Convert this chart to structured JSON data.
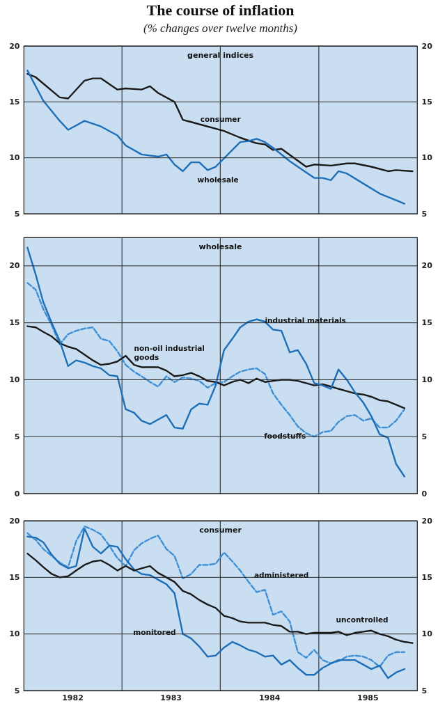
{
  "chart_data": [
    {
      "type": "line",
      "title": "The course of inflation",
      "subtitle": "(% changes over twelve months)",
      "xlim": [
        "1982-01-01",
        "1986-01-01"
      ],
      "ylim": [
        5,
        20
      ],
      "yticks": [
        5,
        10,
        15,
        20
      ],
      "y2lim": [
        5,
        20
      ],
      "y2ticks": [
        5,
        10,
        15,
        20
      ],
      "grid": "y",
      "tick_labels": "y",
      "ref_lines": [
        {
          "axis": "x",
          "value": "1983-01-01",
          "color": "#1a1a1a"
        },
        {
          "axis": "x",
          "value": "1984-01-01",
          "color": "#1a1a1a"
        },
        {
          "axis": "x",
          "value": "1985-01-01",
          "color": "#1a1a1a"
        }
      ],
      "series": [
        {
          "color": "#1a1a1a",
          "x": [
            "1982-01-15",
            "1982-02-15",
            "1982-05-15",
            "1982-06-15",
            "1982-08-15",
            "1982-09-15",
            "1982-10-15",
            "1982-12-15",
            "1983-01-15",
            "1983-03-15",
            "1983-04-15",
            "1983-05-15",
            "1983-07-15",
            "1983-08-15",
            "1983-09-15",
            "1984-01-15",
            "1984-03-15",
            "1984-05-15",
            "1984-06-15",
            "1984-07-15",
            "1984-08-15",
            "1984-11-15",
            "1984-12-15",
            "1985-02-15",
            "1985-04-15",
            "1985-05-15",
            "1985-07-15",
            "1985-09-15",
            "1985-10-15",
            "1985-12-15"
          ],
          "values": [
            17.5,
            17.2,
            15.4,
            15.3,
            16.9,
            17.1,
            17.1,
            16.1,
            16.2,
            16.1,
            16.4,
            15.8,
            15.0,
            13.4,
            13.2,
            12.4,
            11.8,
            11.3,
            11.2,
            10.7,
            10.8,
            9.2,
            9.4,
            9.3,
            9.5,
            9.5,
            9.2,
            8.8,
            8.9,
            8.8
          ]
        },
        {
          "color": "#1f6fb8",
          "x": [
            "1982-01-15",
            "1982-03-15",
            "1982-05-15",
            "1982-06-15",
            "1982-08-15",
            "1982-10-15",
            "1982-12-15",
            "1983-01-15",
            "1983-03-15",
            "1983-05-15",
            "1983-06-15",
            "1983-07-15",
            "1983-08-15",
            "1983-09-15",
            "1983-10-15",
            "1983-11-15",
            "1983-12-15",
            "1984-02-15",
            "1984-03-15",
            "1984-04-15",
            "1984-05-15",
            "1984-06-15",
            "1984-07-15",
            "1984-09-15",
            "1984-10-15",
            "1984-12-15",
            "1985-01-15",
            "1985-02-15",
            "1985-03-15",
            "1985-04-15",
            "1985-06-15",
            "1985-08-15",
            "1985-10-15",
            "1985-11-15"
          ],
          "values": [
            17.8,
            15.1,
            13.3,
            12.5,
            13.3,
            12.8,
            12.0,
            11.1,
            10.3,
            10.1,
            10.3,
            9.4,
            8.8,
            9.6,
            9.6,
            8.9,
            9.2,
            10.7,
            11.4,
            11.5,
            11.7,
            11.4,
            10.9,
            9.7,
            9.2,
            8.2,
            8.2,
            8.0,
            8.8,
            8.6,
            7.7,
            6.8,
            6.2,
            5.9
          ]
        }
      ],
      "annotations": [
        "general indices",
        {
          "text": "consumer",
          "x": "1984-01-15",
          "y": 12.4
        },
        {
          "text": "wholesale",
          "x": "1983-11-15",
          "y": 8.9
        }
      ]
    },
    {
      "type": "line",
      "xlim": [
        "1982-01-01",
        "1986-01-01"
      ],
      "ylim": [
        0,
        22.5
      ],
      "yticks": [
        0,
        5,
        10,
        15,
        20
      ],
      "y2lim": [
        0,
        22.5
      ],
      "y2ticks": [
        0,
        5,
        10,
        15,
        20
      ],
      "grid": "y",
      "tick_labels": "y",
      "ref_lines": [
        {
          "axis": "x",
          "value": "1983-01-01",
          "color": "#1a1a1a"
        },
        {
          "axis": "x",
          "value": "1984-01-01",
          "color": "#1a1a1a"
        },
        {
          "axis": "x",
          "value": "1985-01-01",
          "color": "#1a1a1a"
        }
      ],
      "x": [
        "1982-01-15",
        "1982-02-15",
        "1982-03-15",
        "1982-04-15",
        "1982-05-15",
        "1982-06-15",
        "1982-07-15",
        "1982-08-15",
        "1982-09-15",
        "1982-10-15",
        "1982-11-15",
        "1982-12-15",
        "1983-01-15",
        "1983-02-15",
        "1983-03-15",
        "1983-04-15",
        "1983-05-15",
        "1983-06-15",
        "1983-07-15",
        "1983-08-15",
        "1983-09-15",
        "1983-10-15",
        "1983-11-15",
        "1983-12-15",
        "1984-01-15",
        "1984-02-15",
        "1984-03-15",
        "1984-04-15",
        "1984-05-15",
        "1984-06-15",
        "1984-07-15",
        "1984-08-15",
        "1984-09-15",
        "1984-10-15",
        "1984-11-15",
        "1984-12-15",
        "1985-01-15",
        "1985-02-15",
        "1985-03-15",
        "1985-04-15",
        "1985-05-15",
        "1985-06-15",
        "1985-07-15",
        "1985-08-15",
        "1985-09-15",
        "1985-10-15",
        "1985-11-15"
      ],
      "series": [
        {
          "color": "#3f8fd6",
          "line_style": "dashed",
          "values": [
            18.5,
            17.9,
            16.2,
            14.8,
            13.1,
            14.0,
            14.3,
            14.5,
            14.6,
            13.6,
            13.4,
            12.5,
            11.3,
            10.7,
            10.3,
            9.8,
            9.4,
            10.3,
            9.8,
            10.2,
            10.1,
            9.9,
            9.3,
            9.7,
            9.8,
            10.3,
            10.7,
            10.9,
            11.0,
            10.5,
            8.8,
            7.8,
            6.9,
            5.9,
            5.3,
            5.0,
            5.4,
            5.5,
            6.3,
            6.8,
            6.9,
            6.4,
            6.6,
            5.8,
            5.8,
            6.4,
            7.4
          ]
        },
        {
          "color": "#1a1a1a",
          "values": [
            14.7,
            14.6,
            14.2,
            13.8,
            13.2,
            12.9,
            12.7,
            12.2,
            11.7,
            11.3,
            11.4,
            11.6,
            12.1,
            11.3,
            11.1,
            11.1,
            11.1,
            10.8,
            10.3,
            10.4,
            10.6,
            10.3,
            9.9,
            9.8,
            9.5,
            9.8,
            10.0,
            9.7,
            10.1,
            9.8,
            9.9,
            10.0,
            10.0,
            9.9,
            9.7,
            9.5,
            9.6,
            9.4,
            9.2,
            9.0,
            8.8,
            8.7,
            8.5,
            8.2,
            8.1,
            7.8,
            7.5
          ]
        },
        {
          "color": "#1f6fb8",
          "values": [
            21.6,
            19.2,
            16.8,
            15.0,
            13.4,
            11.2,
            11.7,
            11.5,
            11.2,
            11.0,
            10.4,
            10.3,
            7.4,
            7.1,
            6.4,
            6.1,
            6.5,
            6.9,
            5.8,
            5.7,
            7.4,
            7.9,
            7.8,
            9.5,
            12.6,
            13.6,
            14.6,
            15.1,
            15.3,
            15.1,
            14.4,
            14.3,
            12.4,
            12.6,
            11.4,
            9.7,
            9.5,
            9.2,
            10.9,
            10.0,
            8.9,
            8.0,
            6.8,
            5.2,
            4.9,
            2.6,
            1.5
          ]
        }
      ],
      "annotations": [
        "wholesale",
        {
          "text": "industrial materials",
          "x": "1984-05-15",
          "y": 15.3
        },
        {
          "text": "non-oil industrial\ngoods",
          "x": "1983-01-15",
          "y": 12.1
        },
        {
          "text": "foodstuffs",
          "x": "1984-12-15",
          "y": 5.0
        }
      ]
    },
    {
      "type": "line",
      "xlim": [
        "1982-01-01",
        "1986-01-01"
      ],
      "xticks": [
        {
          "value": "1982-07-01",
          "label": "1982"
        },
        {
          "value": "1983-07-01",
          "label": "1983"
        },
        {
          "value": "1984-07-01",
          "label": "1984"
        },
        {
          "value": "1985-07-01",
          "label": "1985"
        }
      ],
      "ylim": [
        5,
        20
      ],
      "yticks": [
        5,
        10,
        15,
        20
      ],
      "y2lim": [
        5,
        20
      ],
      "y2ticks": [
        5,
        10,
        15,
        20
      ],
      "grid": "y",
      "ref_lines": [
        {
          "axis": "x",
          "value": "1983-01-01",
          "color": "#1a1a1a"
        },
        {
          "axis": "x",
          "value": "1984-01-01",
          "color": "#1a1a1a"
        },
        {
          "axis": "x",
          "value": "1985-01-01",
          "color": "#1a1a1a"
        }
      ],
      "x": [
        "1982-01-15",
        "1982-02-15",
        "1982-03-15",
        "1982-04-15",
        "1982-05-15",
        "1982-06-15",
        "1982-07-15",
        "1982-08-15",
        "1982-09-15",
        "1982-10-15",
        "1982-11-15",
        "1982-12-15",
        "1983-01-15",
        "1983-02-15",
        "1983-03-15",
        "1983-04-15",
        "1983-05-15",
        "1983-06-15",
        "1983-07-15",
        "1983-08-15",
        "1983-09-15",
        "1983-10-15",
        "1983-11-15",
        "1983-12-15",
        "1984-01-15",
        "1984-02-15",
        "1984-03-15",
        "1984-04-15",
        "1984-05-15",
        "1984-06-15",
        "1984-07-15",
        "1984-08-15",
        "1984-09-15",
        "1984-10-15",
        "1984-11-15",
        "1984-12-15",
        "1985-01-15",
        "1985-02-15",
        "1985-03-15",
        "1985-04-15",
        "1985-05-15",
        "1985-06-15",
        "1985-07-15",
        "1985-08-15",
        "1985-09-15",
        "1985-10-15",
        "1985-11-15",
        "1985-12-15"
      ],
      "series": [
        {
          "color": "#3f8fd6",
          "line_style": "dashed",
          "values": [
            18.9,
            18.3,
            17.5,
            16.9,
            16.3,
            15.9,
            18.2,
            19.5,
            19.2,
            18.8,
            17.8,
            16.7,
            16.0,
            17.4,
            18.0,
            18.4,
            18.7,
            17.5,
            16.9,
            14.9,
            15.3,
            16.1,
            16.1,
            16.2,
            17.2,
            16.4,
            15.6,
            14.6,
            13.7,
            13.9,
            11.7,
            12.0,
            11.1,
            8.4,
            7.9,
            8.6,
            7.7,
            7.4,
            7.6,
            8.0,
            8.1,
            8.0,
            7.7,
            7.1,
            8.1,
            8.4,
            8.4,
            null
          ]
        },
        {
          "color": "#1f6fb8",
          "values": [
            18.6,
            18.5,
            18.1,
            17.0,
            16.2,
            15.8,
            16.0,
            19.3,
            17.7,
            17.1,
            17.8,
            17.7,
            16.6,
            15.7,
            15.3,
            15.2,
            14.8,
            14.4,
            13.6,
            10.0,
            9.6,
            8.9,
            8.0,
            8.1,
            8.8,
            9.3,
            9.0,
            8.6,
            8.4,
            8.0,
            8.1,
            7.3,
            7.7,
            7.0,
            6.4,
            6.4,
            7.0,
            7.4,
            7.7,
            7.7,
            7.7,
            7.3,
            6.9,
            7.2,
            6.1,
            6.6,
            6.9,
            null
          ]
        },
        {
          "color": "#1a1a1a",
          "values": [
            17.1,
            16.5,
            15.9,
            15.3,
            15.0,
            15.1,
            15.6,
            16.1,
            16.4,
            16.5,
            16.1,
            15.6,
            16.0,
            15.6,
            15.8,
            16.0,
            15.4,
            15.0,
            14.6,
            13.8,
            13.5,
            13.0,
            12.6,
            12.3,
            11.6,
            11.4,
            11.1,
            11.0,
            11.0,
            11.0,
            10.8,
            10.7,
            10.2,
            10.2,
            10.0,
            10.1,
            10.1,
            10.1,
            10.2,
            9.9,
            10.1,
            10.2,
            10.3,
            10.0,
            9.8,
            9.5,
            9.3,
            9.2
          ]
        }
      ],
      "annotations": [
        "consumer",
        {
          "text": "monitored",
          "x": "1983-08-15",
          "y": 10.0
        },
        {
          "text": "administered",
          "x": "1984-04-15",
          "y": 14.6
        },
        {
          "text": "uncontrolled",
          "x": "1985-04-15",
          "y": 10.2
        }
      ]
    }
  ]
}
